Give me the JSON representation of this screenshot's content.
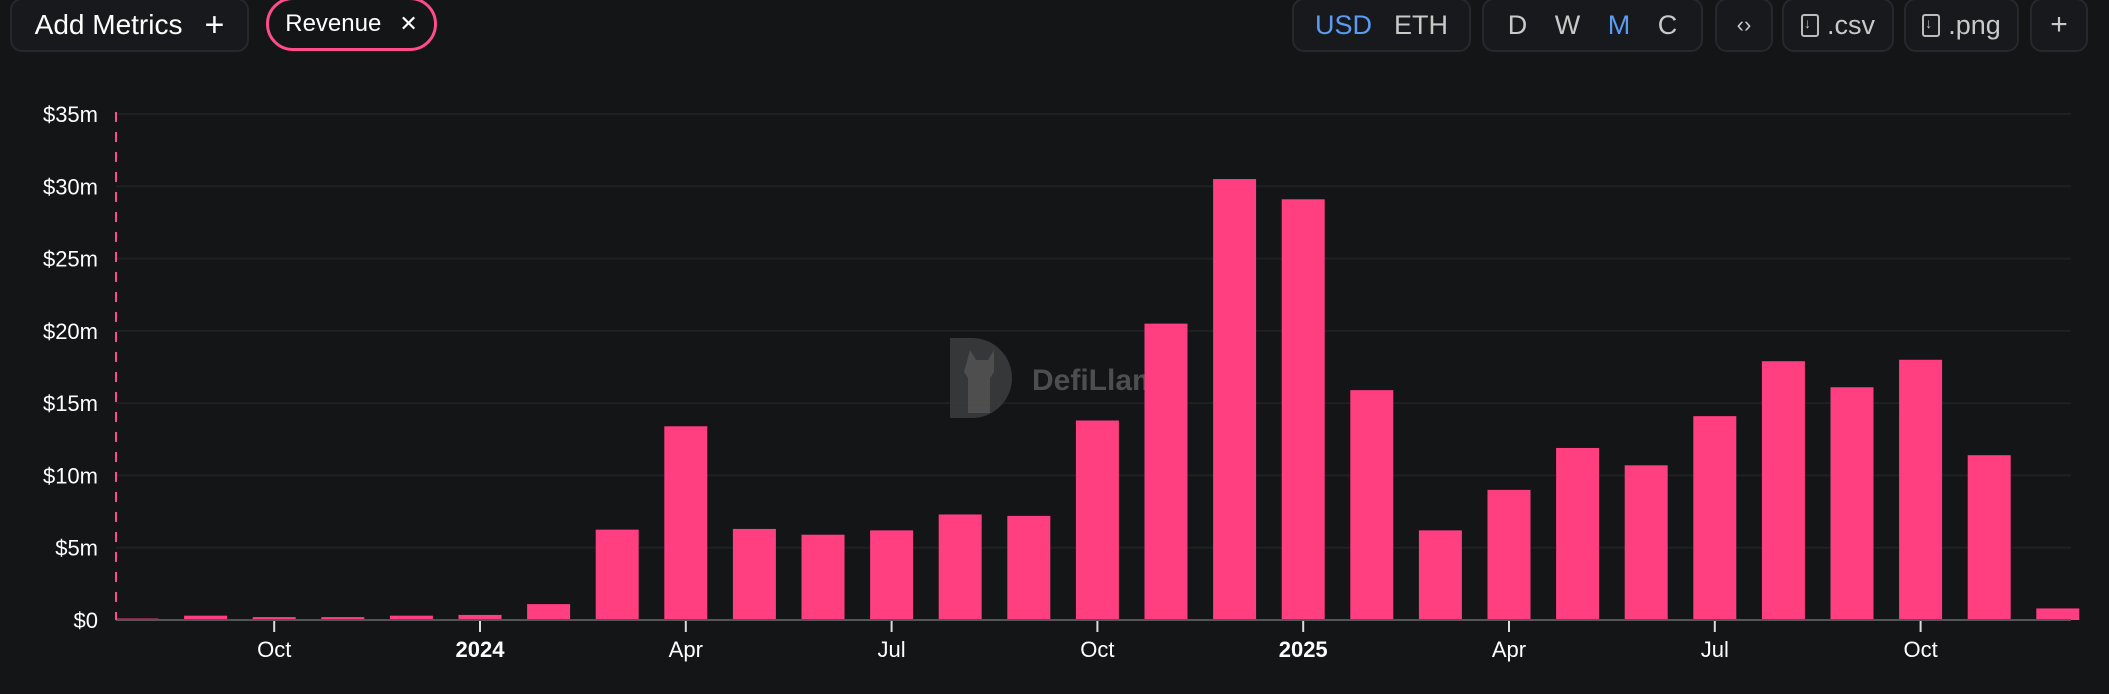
{
  "toolbar": {
    "add_metrics_label": "Add Metrics",
    "add_icon": "+",
    "metric_chip": "Revenue",
    "close_icon": "✕",
    "currency": [
      "USD",
      "ETH"
    ],
    "currency_selected": "USD",
    "granularity": [
      "D",
      "W",
      "M",
      "C"
    ],
    "granularity_selected": "M",
    "embed_icon": "‹›",
    "csv_label": ".csv",
    "png_label": ".png",
    "plus_icon": "+"
  },
  "watermark": "DefiLlama",
  "colors": {
    "bar": "#ff3f80",
    "accent": "#5b9cf2",
    "background": "#141517"
  },
  "chart_data": {
    "type": "bar",
    "title": "",
    "xlabel": "",
    "ylabel": "Revenue",
    "ylim": [
      0,
      35
    ],
    "unit": "$m",
    "y_ticks": [
      "$0",
      "$5m",
      "$10m",
      "$15m",
      "$20m",
      "$25m",
      "$30m",
      "$35m"
    ],
    "categories": [
      "Aug 2023",
      "Sep 2023",
      "Oct 2023",
      "Nov 2023",
      "Dec 2023",
      "Jan 2024",
      "Feb 2024",
      "Mar 2024",
      "Apr 2024",
      "May 2024",
      "Jun 2024",
      "Jul 2024",
      "Aug 2024",
      "Sep 2024",
      "Oct 2024",
      "Nov 2024",
      "Dec 2024",
      "Jan 2025",
      "Feb 2025",
      "Mar 2025",
      "Apr 2025",
      "May 2025",
      "Jun 2025",
      "Jul 2025",
      "Aug 2025",
      "Sep 2025",
      "Oct 2025",
      "Nov 2025",
      "Dec 2025"
    ],
    "values": [
      0.1,
      0.3,
      0.2,
      0.2,
      0.3,
      0.35,
      1.1,
      6.25,
      13.4,
      6.3,
      5.9,
      6.2,
      7.3,
      7.2,
      13.8,
      20.5,
      30.5,
      29.1,
      15.9,
      6.2,
      9.0,
      11.9,
      10.7,
      14.1,
      17.9,
      16.1,
      18.0,
      11.4,
      0.8
    ],
    "x_ticks": [
      {
        "index": 2,
        "label": "Oct",
        "bold": false
      },
      {
        "index": 5,
        "label": "2024",
        "bold": true
      },
      {
        "index": 8,
        "label": "Apr",
        "bold": false
      },
      {
        "index": 11,
        "label": "Jul",
        "bold": false
      },
      {
        "index": 14,
        "label": "Oct",
        "bold": false
      },
      {
        "index": 17,
        "label": "2025",
        "bold": true
      },
      {
        "index": 20,
        "label": "Apr",
        "bold": false
      },
      {
        "index": 23,
        "label": "Jul",
        "bold": false
      },
      {
        "index": 26,
        "label": "Oct",
        "bold": false
      }
    ],
    "grid": true,
    "legend": "none"
  }
}
